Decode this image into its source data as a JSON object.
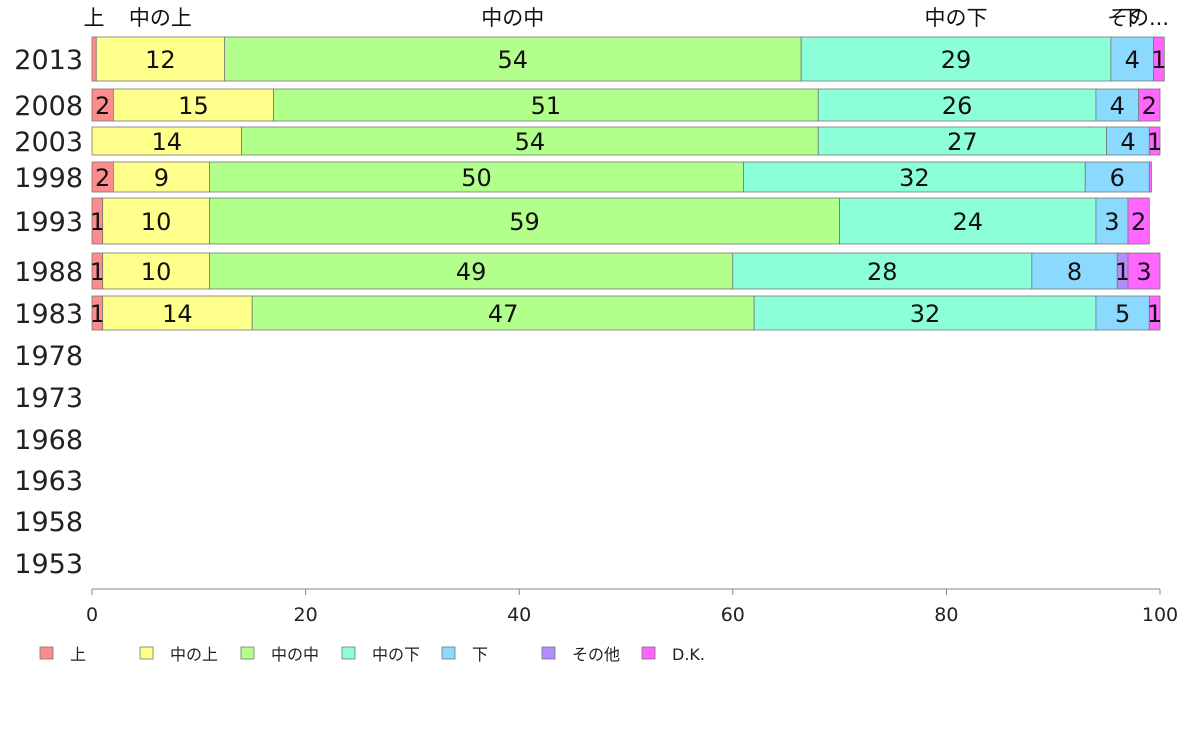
{
  "chart_data": {
    "type": "bar",
    "orientation": "horizontal",
    "stacked": true,
    "title": "",
    "xlabel": "",
    "ylabel": "",
    "xlim": [
      0,
      100
    ],
    "x_ticks": [
      "0",
      "20",
      "40",
      "60",
      "80",
      "100"
    ],
    "categories": [
      "2013",
      "2008",
      "2003",
      "1998",
      "1993",
      "1988",
      "1983",
      "1978",
      "1973",
      "1968",
      "1963",
      "1958",
      "1953"
    ],
    "top_labels": [
      {
        "text": "上",
        "series": "上"
      },
      {
        "text": "中の上",
        "series": "中の上"
      },
      {
        "text": "中の中",
        "series": "中の中"
      },
      {
        "text": "中の下",
        "series": "中の下"
      },
      {
        "text": "下",
        "series": "下"
      },
      {
        "text": "その...",
        "series": "その他"
      }
    ],
    "series": [
      {
        "name": "上",
        "color": "#ff8c8c",
        "values": [
          0.4,
          2,
          0,
          2,
          1,
          1,
          1,
          null,
          null,
          null,
          null,
          null,
          null
        ],
        "labels": [
          "",
          "2",
          "",
          "2",
          "1",
          "1",
          "1",
          "",
          "",
          "",
          "",
          "",
          ""
        ]
      },
      {
        "name": "中の上",
        "color": "#ffff8c",
        "values": [
          12,
          15,
          14,
          9,
          10,
          10,
          14,
          null,
          null,
          null,
          null,
          null,
          null
        ],
        "labels": [
          "12",
          "15",
          "14",
          "9",
          "10",
          "10",
          "14",
          "",
          "",
          "",
          "",
          "",
          ""
        ]
      },
      {
        "name": "中の中",
        "color": "#b3ff8c",
        "values": [
          54,
          51,
          54,
          50,
          59,
          49,
          47,
          null,
          null,
          null,
          null,
          null,
          null
        ],
        "labels": [
          "54",
          "51",
          "54",
          "50",
          "59",
          "49",
          "47",
          "",
          "",
          "",
          "",
          "",
          ""
        ]
      },
      {
        "name": "中の下",
        "color": "#8cffd9",
        "values": [
          29,
          26,
          27,
          32,
          24,
          28,
          32,
          null,
          null,
          null,
          null,
          null,
          null
        ],
        "labels": [
          "29",
          "26",
          "27",
          "32",
          "24",
          "28",
          "32",
          "",
          "",
          "",
          "",
          "",
          ""
        ]
      },
      {
        "name": "下",
        "color": "#8cd9ff",
        "values": [
          4,
          4,
          4,
          6,
          3,
          8,
          5,
          null,
          null,
          null,
          null,
          null,
          null
        ],
        "labels": [
          "4",
          "4",
          "4",
          "6",
          "3",
          "8",
          "5",
          "",
          "",
          "",
          "",
          "",
          ""
        ]
      },
      {
        "name": "その他",
        "color": "#b38cff",
        "values": [
          0,
          0,
          0,
          0,
          0,
          1,
          0,
          null,
          null,
          null,
          null,
          null,
          null
        ],
        "labels": [
          "",
          "",
          "",
          "",
          "",
          "1",
          "",
          "",
          "",
          "",
          "",
          "",
          ""
        ]
      },
      {
        "name": "D.K.",
        "color": "#ff66ff",
        "values": [
          1,
          2,
          1,
          0.2,
          2,
          3,
          1,
          null,
          null,
          null,
          null,
          null,
          null
        ],
        "labels": [
          "1",
          "2",
          "1",
          "",
          "2",
          "3",
          "1",
          "",
          "",
          "",
          "",
          "",
          ""
        ]
      }
    ],
    "legend": {
      "placement": "bottom-left",
      "items": [
        "上",
        "中の上",
        "中の中",
        "中の下",
        "下",
        "その他",
        "D.K."
      ]
    },
    "grid": false
  }
}
